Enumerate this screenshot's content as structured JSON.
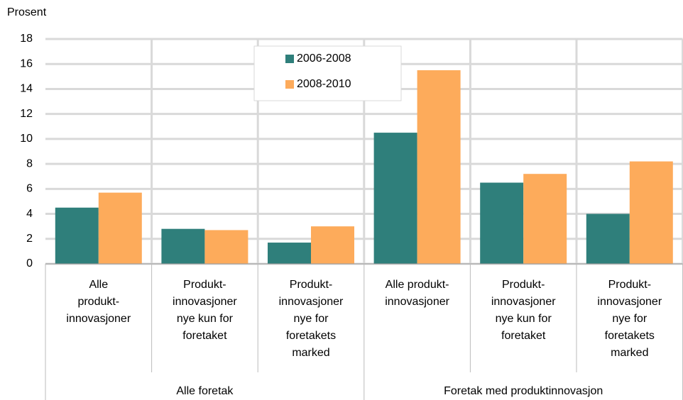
{
  "chart_data": {
    "type": "bar",
    "y_axis_label": "Prosent",
    "categories": [
      [
        "Alle",
        "produkt-",
        "innovasjoner"
      ],
      [
        "Produkt-",
        "innovasjoner",
        "nye kun for",
        "foretaket"
      ],
      [
        "Produkt-",
        "innovasjoner",
        "nye for",
        "foretakets",
        "marked"
      ],
      [
        "Alle produkt-",
        "innovasjoner"
      ],
      [
        "Produkt-",
        "innovasjoner",
        "nye kun for",
        "foretaket"
      ],
      [
        "Produkt-",
        "innovasjoner",
        "nye for",
        "foretakets",
        "marked"
      ]
    ],
    "groups": [
      {
        "label": "Alle foretak",
        "size": 3
      },
      {
        "label": "Foretak med produktinnovasjon",
        "size": 3
      }
    ],
    "series": [
      {
        "name": "2006-2008",
        "color": "#2f7f7b",
        "values": [
          4.5,
          2.8,
          1.7,
          10.5,
          6.5,
          4.0
        ]
      },
      {
        "name": "2008-2010",
        "color": "#fdab5b",
        "values": [
          5.7,
          2.7,
          3.0,
          15.5,
          7.2,
          8.2
        ]
      }
    ],
    "ylim": [
      0,
      18
    ],
    "yticks": [
      0,
      2,
      4,
      6,
      8,
      10,
      12,
      14,
      16,
      18
    ],
    "grid": true
  }
}
